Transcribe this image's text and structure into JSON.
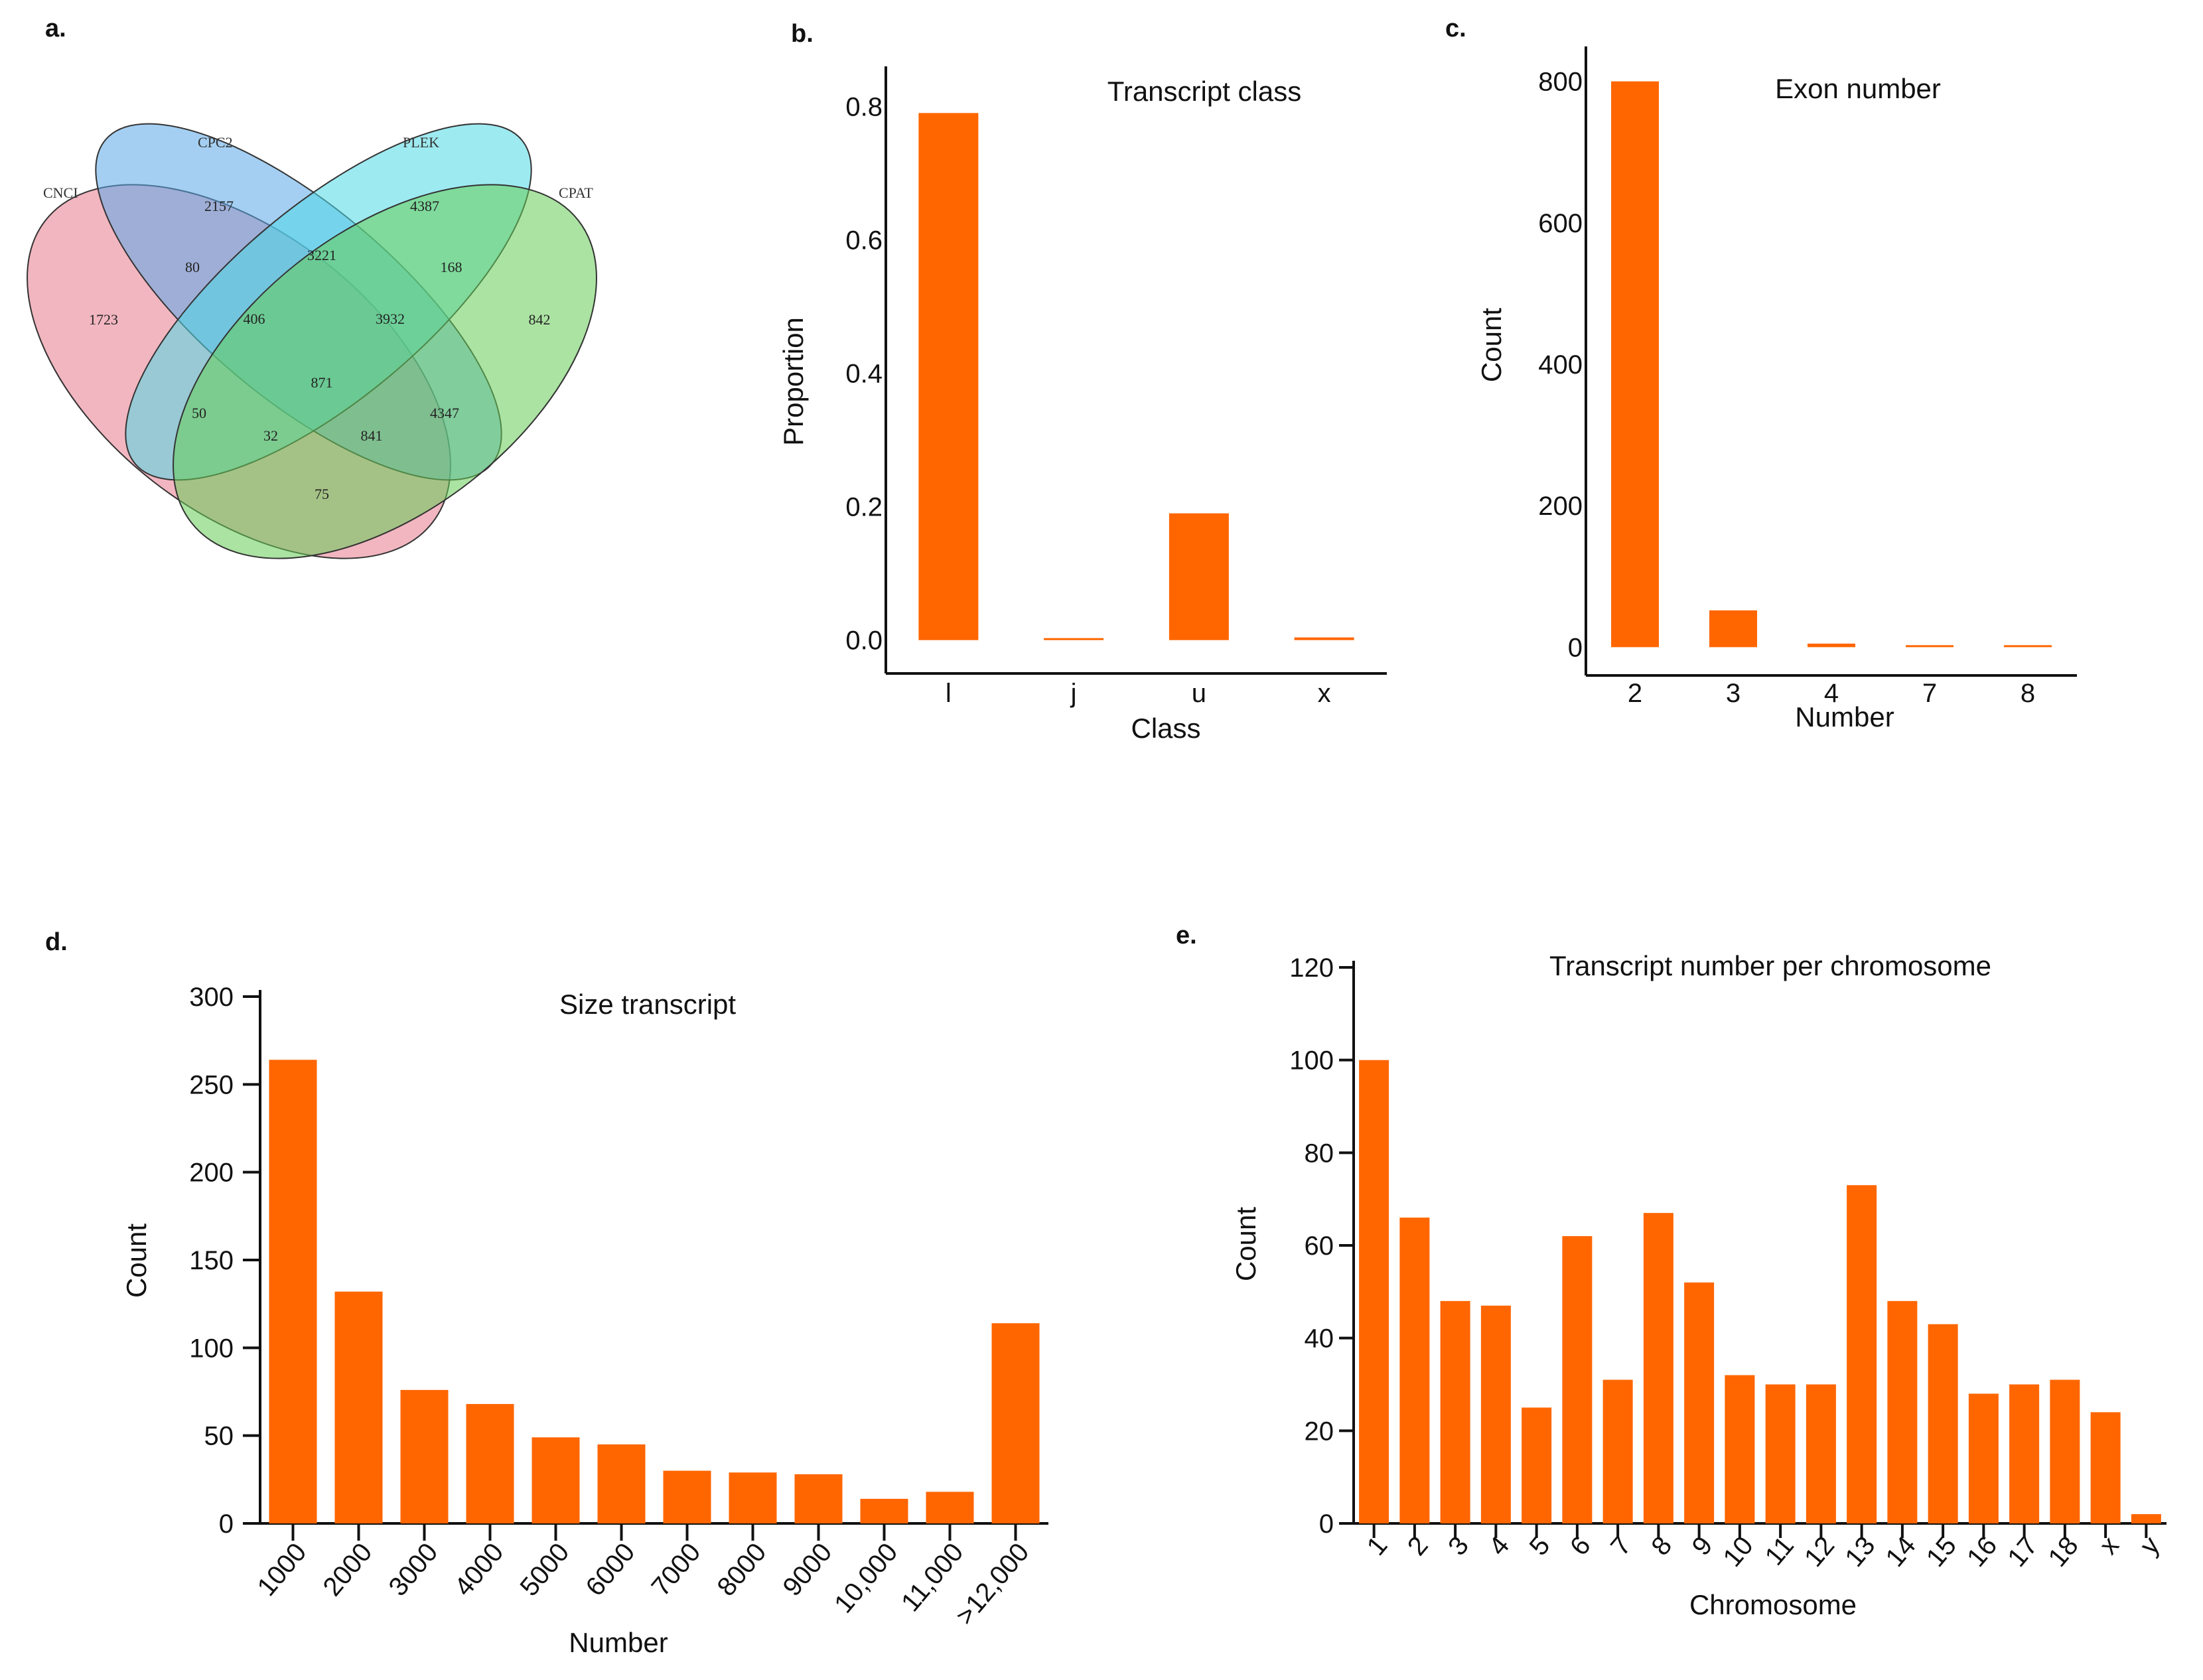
{
  "panel_labels": {
    "a": "a.",
    "b": "b.",
    "c": "c.",
    "d": "d.",
    "e": "e."
  },
  "venn": {
    "sets": {
      "cnci": "CNCI",
      "cpc2": "CPC2",
      "plek": "PLEK",
      "cpat": "CPAT"
    },
    "colors": {
      "cnci": "#e87a8c",
      "cpc2": "#5aa8e8",
      "plek": "#4fd9e6",
      "cpat": "#66cc55"
    },
    "regions": {
      "cnci_only": "1723",
      "cpc2_only": "2157",
      "plek_only": "4387",
      "cpat_only": "842",
      "cnci_cpc2": "80",
      "cpc2_plek": "3221",
      "plek_cpat": "168",
      "cnci_cpc2_plek": "406",
      "cpc2_plek_cpat": "3932",
      "all_four": "871",
      "cnci_plek": "50",
      "cnci_plek_cpat": "32",
      "cnci_cpc2_cpat": "841",
      "cpc2_cpat": "4347",
      "cnci_cpat": "75"
    }
  },
  "chart_data": [
    {
      "id": "b",
      "type": "bar",
      "title": "Transcript class",
      "xlabel": "Class",
      "ylabel": "Proportion",
      "categories": [
        "l",
        "j",
        "u",
        "x"
      ],
      "values": [
        0.79,
        0.002,
        0.19,
        0.004
      ],
      "ylim": [
        -0.05,
        0.85
      ],
      "yticks": [
        0.0,
        0.2,
        0.4,
        0.6,
        0.8
      ],
      "ytick_labels": [
        "0.0",
        "0.2",
        "0.4",
        "0.6",
        "0.8"
      ],
      "color": "#ff6600"
    },
    {
      "id": "c",
      "type": "bar",
      "title": "Exon number",
      "xlabel": "Number",
      "ylabel": "Count",
      "categories": [
        "2",
        "3",
        "4",
        "7",
        "8"
      ],
      "values": [
        800,
        52,
        5,
        1,
        2
      ],
      "ylim": [
        -40,
        840
      ],
      "yticks": [
        0,
        200,
        400,
        600,
        800
      ],
      "ytick_labels": [
        "0",
        "200",
        "400",
        "600",
        "800"
      ],
      "color": "#ff6600"
    },
    {
      "id": "d",
      "type": "bar",
      "title": "Size transcript",
      "xlabel": "Number",
      "ylabel": "Count",
      "categories": [
        "1000",
        "2000",
        "3000",
        "4000",
        "5000",
        "6000",
        "7000",
        "8000",
        "9000",
        "10,000",
        "11,000",
        ">12,000"
      ],
      "values": [
        264,
        132,
        76,
        68,
        49,
        45,
        30,
        29,
        28,
        14,
        18,
        114
      ],
      "ylim": [
        0,
        300
      ],
      "yticks": [
        0,
        50,
        100,
        150,
        200,
        250,
        300
      ],
      "ytick_labels": [
        "0",
        "50",
        "100",
        "150",
        "200",
        "250",
        "300"
      ],
      "color": "#ff6600"
    },
    {
      "id": "e",
      "type": "bar",
      "title": "Transcript number per chromosome",
      "xlabel": "Chromosome",
      "ylabel": "Count",
      "categories": [
        "1",
        "2",
        "3",
        "4",
        "5",
        "6",
        "7",
        "8",
        "9",
        "10",
        "11",
        "12",
        "13",
        "14",
        "15",
        "16",
        "17",
        "18",
        "x",
        "y"
      ],
      "values": [
        100,
        66,
        48,
        47,
        25,
        62,
        31,
        67,
        52,
        32,
        30,
        30,
        73,
        48,
        43,
        28,
        30,
        31,
        24,
        2
      ],
      "ylim": [
        0,
        120
      ],
      "yticks": [
        0,
        20,
        40,
        60,
        80,
        100,
        120
      ],
      "ytick_labels": [
        "0",
        "20",
        "40",
        "60",
        "80",
        "100",
        "120"
      ],
      "color": "#ff6600"
    }
  ]
}
